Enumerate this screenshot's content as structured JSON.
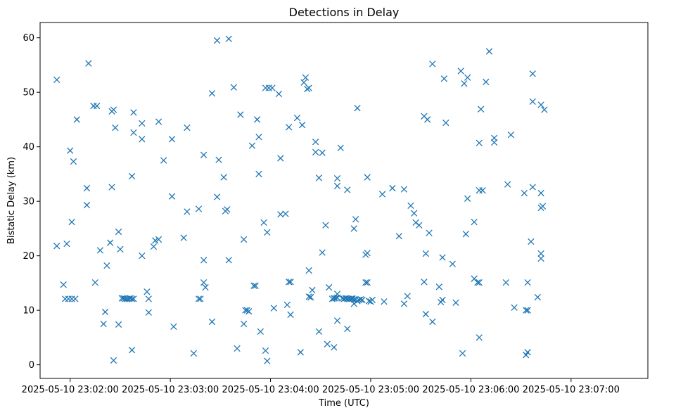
{
  "chart_data": {
    "type": "scatter",
    "title": "Detections in Delay",
    "xlabel": "Time (UTC)",
    "ylabel": "Bistatic Delay (km)",
    "marker": "x",
    "marker_color": "#1f77b4",
    "xlim_seconds": [
      -18,
      346
    ],
    "ylim": [
      -2.5,
      62.8
    ],
    "x_reference": "2025-05-10 23:02:00",
    "x_unit": "seconds after 23:02:00 UTC",
    "x_ticks": [
      {
        "value": 0,
        "label": "2025-05-10 23:02:00"
      },
      {
        "value": 60,
        "label": "2025-05-10 23:03:00"
      },
      {
        "value": 120,
        "label": "2025-05-10 23:04:00"
      },
      {
        "value": 180,
        "label": "2025-05-10 23:05:00"
      },
      {
        "value": 240,
        "label": "2025-05-10 23:06:00"
      },
      {
        "value": 300,
        "label": "2025-05-10 23:07:00"
      }
    ],
    "y_ticks": [
      {
        "value": 0,
        "label": "0"
      },
      {
        "value": 10,
        "label": "10"
      },
      {
        "value": 20,
        "label": "20"
      },
      {
        "value": 30,
        "label": "30"
      },
      {
        "value": 40,
        "label": "40"
      },
      {
        "value": 50,
        "label": "50"
      },
      {
        "value": 60,
        "label": "60"
      }
    ],
    "points": [
      [
        -8,
        52.3
      ],
      [
        -8,
        21.8
      ],
      [
        -4,
        14.7
      ],
      [
        -3,
        12.1
      ],
      [
        -2,
        22.2
      ],
      [
        -1,
        12.1
      ],
      [
        0,
        39.3
      ],
      [
        1,
        12.1
      ],
      [
        1,
        26.2
      ],
      [
        2,
        37.3
      ],
      [
        3,
        12.1
      ],
      [
        4,
        45
      ],
      [
        10,
        29.3
      ],
      [
        10,
        32.4
      ],
      [
        11,
        55.3
      ],
      [
        14,
        47.5
      ],
      [
        15,
        15.1
      ],
      [
        16,
        47.5
      ],
      [
        18,
        21
      ],
      [
        20,
        7.5
      ],
      [
        21,
        9.7
      ],
      [
        22,
        18.2
      ],
      [
        24,
        22.4
      ],
      [
        25,
        32.6
      ],
      [
        25,
        46.5
      ],
      [
        26,
        0.8
      ],
      [
        26,
        46.8
      ],
      [
        27,
        43.5
      ],
      [
        29,
        24.4
      ],
      [
        29,
        7.4
      ],
      [
        30,
        21.2
      ],
      [
        31,
        12.2
      ],
      [
        32,
        12.2
      ],
      [
        33,
        12.1
      ],
      [
        34,
        12.1
      ],
      [
        35,
        12.1
      ],
      [
        36,
        12.2
      ],
      [
        37,
        12.1
      ],
      [
        37,
        2.7
      ],
      [
        37,
        34.6
      ],
      [
        38,
        46.3
      ],
      [
        38,
        42.6
      ],
      [
        38,
        12.1
      ],
      [
        43,
        44.3
      ],
      [
        43,
        41.4
      ],
      [
        43,
        20
      ],
      [
        46,
        13.4
      ],
      [
        47,
        12.1
      ],
      [
        47,
        9.6
      ],
      [
        50,
        21.7
      ],
      [
        51,
        22.8
      ],
      [
        53,
        23
      ],
      [
        53,
        44.6
      ],
      [
        56,
        37.5
      ],
      [
        61,
        30.9
      ],
      [
        61,
        41.4
      ],
      [
        62,
        7
      ],
      [
        68,
        23.3
      ],
      [
        70,
        43.5
      ],
      [
        70,
        28.1
      ],
      [
        74,
        2.1
      ],
      [
        77,
        28.6
      ],
      [
        77,
        12.1
      ],
      [
        78,
        12.1
      ],
      [
        80,
        38.5
      ],
      [
        80,
        19.2
      ],
      [
        80,
        15.1
      ],
      [
        81,
        14.2
      ],
      [
        85,
        49.8
      ],
      [
        85,
        7.9
      ],
      [
        88,
        59.5
      ],
      [
        88,
        30.8
      ],
      [
        89,
        37.6
      ],
      [
        92,
        34.4
      ],
      [
        93,
        28.2
      ],
      [
        94,
        28.5
      ],
      [
        95,
        19.2
      ],
      [
        95,
        59.8
      ],
      [
        98,
        50.9
      ],
      [
        100,
        3
      ],
      [
        102,
        45.9
      ],
      [
        104,
        7.5
      ],
      [
        104,
        23
      ],
      [
        105,
        10
      ],
      [
        106,
        10
      ],
      [
        107,
        9.8
      ],
      [
        109,
        40.2
      ],
      [
        110,
        14.5
      ],
      [
        111,
        14.5
      ],
      [
        112,
        45
      ],
      [
        113,
        35
      ],
      [
        113,
        41.8
      ],
      [
        114,
        6.1
      ],
      [
        116,
        26.1
      ],
      [
        117,
        50.8
      ],
      [
        117,
        2.6
      ],
      [
        118,
        0.7
      ],
      [
        118,
        24.3
      ],
      [
        119,
        50.8
      ],
      [
        121,
        50.8
      ],
      [
        122,
        10.4
      ],
      [
        125,
        49.7
      ],
      [
        126,
        27.6
      ],
      [
        126,
        37.9
      ],
      [
        129,
        27.7
      ],
      [
        130,
        11
      ],
      [
        131,
        43.6
      ],
      [
        131,
        15.2
      ],
      [
        132,
        15.2
      ],
      [
        132,
        9.2
      ],
      [
        136,
        45.3
      ],
      [
        138,
        2.3
      ],
      [
        139,
        44
      ],
      [
        140,
        51.8
      ],
      [
        141,
        52.7
      ],
      [
        142,
        50.6
      ],
      [
        143,
        50.8
      ],
      [
        143,
        17.3
      ],
      [
        143,
        12.5
      ],
      [
        144,
        12.4
      ],
      [
        144,
        12.4
      ],
      [
        145,
        13.7
      ],
      [
        147,
        40.9
      ],
      [
        147,
        39
      ],
      [
        149,
        34.3
      ],
      [
        149,
        6.1
      ],
      [
        151,
        20.6
      ],
      [
        151,
        38.9
      ],
      [
        153,
        25.6
      ],
      [
        154,
        3.8
      ],
      [
        155,
        14.2
      ],
      [
        157,
        12.1
      ],
      [
        158,
        12.2
      ],
      [
        158,
        3.2
      ],
      [
        159,
        12.2
      ],
      [
        160,
        12.3
      ],
      [
        160,
        34.2
      ],
      [
        160,
        32.8
      ],
      [
        160,
        8.1
      ],
      [
        160,
        13
      ],
      [
        162,
        39.8
      ],
      [
        163,
        12.2
      ],
      [
        164,
        12.1
      ],
      [
        165,
        12.2
      ],
      [
        165,
        12.2
      ],
      [
        166,
        12.1
      ],
      [
        166,
        32.1
      ],
      [
        166,
        6.6
      ],
      [
        167,
        12.1
      ],
      [
        168,
        12.1
      ],
      [
        169,
        12.1
      ],
      [
        169,
        12.2
      ],
      [
        170,
        12
      ],
      [
        170,
        11.2
      ],
      [
        170,
        25
      ],
      [
        171,
        26.7
      ],
      [
        171,
        12
      ],
      [
        172,
        47.1
      ],
      [
        172,
        11.7
      ],
      [
        173,
        11.9
      ],
      [
        174,
        12
      ],
      [
        175,
        11.9
      ],
      [
        177,
        15.1
      ],
      [
        177,
        20.2
      ],
      [
        178,
        34.4
      ],
      [
        178,
        20.5
      ],
      [
        178,
        15.1
      ],
      [
        179,
        11.7
      ],
      [
        180,
        11.6
      ],
      [
        181,
        11.9
      ],
      [
        187,
        31.3
      ],
      [
        188,
        11.6
      ],
      [
        193,
        32.4
      ],
      [
        197,
        23.6
      ],
      [
        200,
        32.2
      ],
      [
        200,
        11.2
      ],
      [
        202,
        12.6
      ],
      [
        204,
        29.2
      ],
      [
        206,
        27.8
      ],
      [
        207,
        26.1
      ],
      [
        209,
        25.6
      ],
      [
        212,
        15.2
      ],
      [
        212,
        45.6
      ],
      [
        213,
        20.4
      ],
      [
        213,
        9.3
      ],
      [
        214,
        45
      ],
      [
        215,
        24.2
      ],
      [
        217,
        55.2
      ],
      [
        217,
        7.9
      ],
      [
        221,
        14.3
      ],
      [
        222,
        11.5
      ],
      [
        223,
        11.9
      ],
      [
        223,
        19.7
      ],
      [
        224,
        52.5
      ],
      [
        225,
        44.4
      ],
      [
        229,
        18.5
      ],
      [
        231,
        11.4
      ],
      [
        234,
        53.9
      ],
      [
        235,
        2.1
      ],
      [
        236,
        51.6
      ],
      [
        237,
        24
      ],
      [
        238,
        52.7
      ],
      [
        238,
        30.5
      ],
      [
        242,
        15.8
      ],
      [
        242,
        26.2
      ],
      [
        244,
        15.1
      ],
      [
        245,
        15.1
      ],
      [
        245,
        32
      ],
      [
        245,
        40.7
      ],
      [
        245,
        5
      ],
      [
        246,
        46.9
      ],
      [
        247,
        32
      ],
      [
        249,
        51.9
      ],
      [
        251,
        57.5
      ],
      [
        254,
        41.6
      ],
      [
        254,
        40.8
      ],
      [
        261,
        15.1
      ],
      [
        262,
        33.1
      ],
      [
        264,
        42.2
      ],
      [
        266,
        10.5
      ],
      [
        272,
        31.5
      ],
      [
        273,
        1.8
      ],
      [
        273,
        10
      ],
      [
        274,
        10
      ],
      [
        274,
        15.1
      ],
      [
        274,
        10
      ],
      [
        274,
        2.3
      ],
      [
        276,
        22.6
      ],
      [
        277,
        32.6
      ],
      [
        277,
        48.3
      ],
      [
        277,
        53.4
      ],
      [
        280,
        12.4
      ],
      [
        282,
        31.5
      ],
      [
        282,
        47.7
      ],
      [
        282,
        19.5
      ],
      [
        282,
        20.4
      ],
      [
        282,
        28.8
      ],
      [
        283,
        29.1
      ],
      [
        284,
        46.8
      ]
    ]
  }
}
